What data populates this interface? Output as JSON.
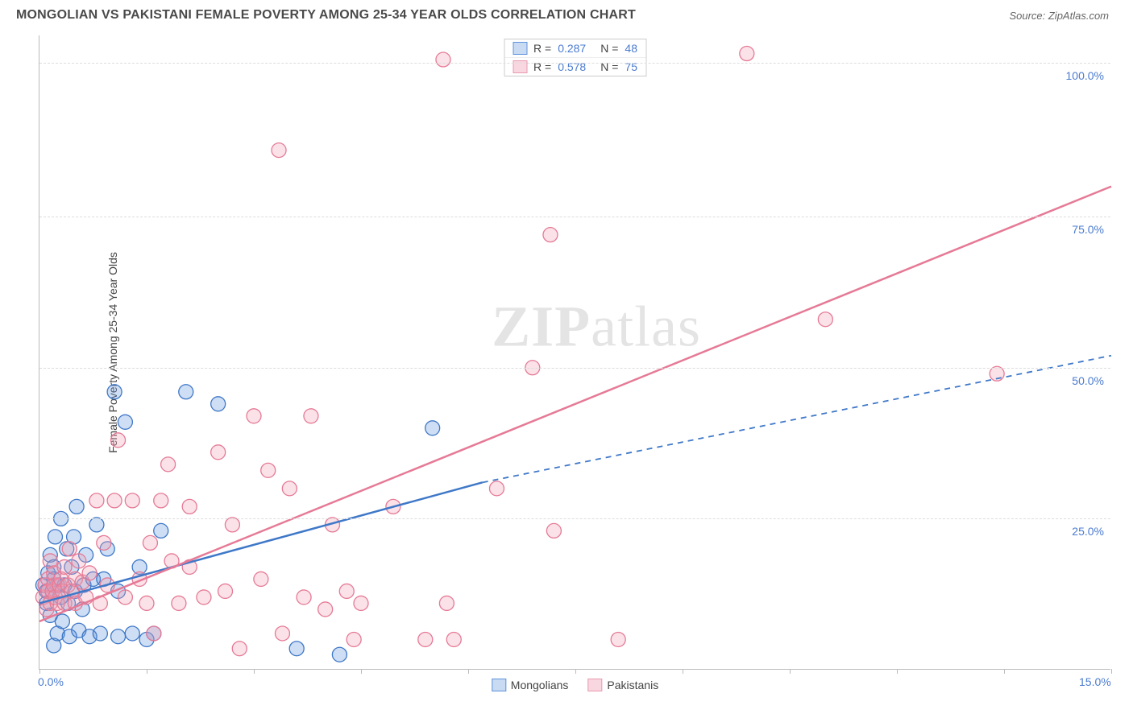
{
  "title": "MONGOLIAN VS PAKISTANI FEMALE POVERTY AMONG 25-34 YEAR OLDS CORRELATION CHART",
  "source_label": "Source: ZipAtlas.com",
  "ylabel": "Female Poverty Among 25-34 Year Olds",
  "watermark": {
    "bold": "ZIP",
    "rest": "atlas"
  },
  "chart": {
    "type": "scatter",
    "background_color": "#ffffff",
    "grid_color": "#dddddd",
    "axis_color": "#bbbbbb",
    "tick_label_color": "#4a7bd0",
    "xlim": [
      0,
      15
    ],
    "ylim": [
      0,
      105
    ],
    "x_ticks": [
      0,
      1.5,
      3,
      4.5,
      6,
      7.5,
      9,
      10.5,
      12,
      13.5,
      15
    ],
    "x_tick_labels": {
      "0": "0.0%",
      "15": "15.0%"
    },
    "y_gridlines": [
      25,
      50,
      75,
      100.5
    ],
    "y_tick_labels": {
      "25": "25.0%",
      "50": "50.0%",
      "75": "75.0%",
      "100.5": "100.0%"
    },
    "marker_radius": 9,
    "marker_fill_opacity": 0.3,
    "marker_stroke_width": 1.3,
    "series": [
      {
        "name": "Mongolians",
        "color": "#5d93db",
        "stroke": "#3f78c8",
        "R": "0.287",
        "N": "48",
        "trend": {
          "x1": 0,
          "y1": 11,
          "x2": 6.2,
          "y2": 31,
          "dash_to_x": 15,
          "dash_to_y": 52,
          "width": 2.5
        },
        "points": [
          [
            0.05,
            14
          ],
          [
            0.1,
            13
          ],
          [
            0.1,
            11
          ],
          [
            0.12,
            16
          ],
          [
            0.15,
            19
          ],
          [
            0.15,
            9
          ],
          [
            0.18,
            13
          ],
          [
            0.2,
            15
          ],
          [
            0.2,
            17
          ],
          [
            0.2,
            4
          ],
          [
            0.22,
            22
          ],
          [
            0.25,
            14
          ],
          [
            0.25,
            6
          ],
          [
            0.3,
            12
          ],
          [
            0.3,
            25
          ],
          [
            0.32,
            8
          ],
          [
            0.35,
            14
          ],
          [
            0.38,
            20
          ],
          [
            0.4,
            11
          ],
          [
            0.42,
            5.5
          ],
          [
            0.45,
            17
          ],
          [
            0.48,
            22
          ],
          [
            0.5,
            13
          ],
          [
            0.52,
            27
          ],
          [
            0.55,
            6.5
          ],
          [
            0.6,
            10
          ],
          [
            0.62,
            14
          ],
          [
            0.65,
            19
          ],
          [
            0.7,
            5.5
          ],
          [
            0.75,
            15
          ],
          [
            0.8,
            24
          ],
          [
            0.85,
            6
          ],
          [
            0.9,
            15
          ],
          [
            0.95,
            20
          ],
          [
            1.05,
            46
          ],
          [
            1.1,
            13
          ],
          [
            1.1,
            5.5
          ],
          [
            1.2,
            41
          ],
          [
            1.3,
            6
          ],
          [
            1.4,
            17
          ],
          [
            1.5,
            5
          ],
          [
            1.6,
            6
          ],
          [
            1.7,
            23
          ],
          [
            2.05,
            46
          ],
          [
            2.5,
            44
          ],
          [
            3.6,
            3.5
          ],
          [
            4.2,
            2.5
          ],
          [
            5.5,
            40
          ]
        ]
      },
      {
        "name": "Pakistanis",
        "color": "#f0a0b4",
        "stroke": "#e67a96",
        "R": "0.578",
        "N": "75",
        "trend": {
          "x1": 0,
          "y1": 8,
          "x2": 15,
          "y2": 80,
          "width": 2.5
        },
        "points": [
          [
            0.05,
            12
          ],
          [
            0.08,
            14
          ],
          [
            0.1,
            10
          ],
          [
            0.12,
            15
          ],
          [
            0.12,
            13
          ],
          [
            0.15,
            11
          ],
          [
            0.15,
            18
          ],
          [
            0.18,
            13
          ],
          [
            0.2,
            14
          ],
          [
            0.2,
            16
          ],
          [
            0.22,
            12
          ],
          [
            0.25,
            11
          ],
          [
            0.28,
            14
          ],
          [
            0.3,
            15
          ],
          [
            0.32,
            13
          ],
          [
            0.35,
            17
          ],
          [
            0.35,
            11
          ],
          [
            0.4,
            14
          ],
          [
            0.42,
            20
          ],
          [
            0.45,
            13
          ],
          [
            0.5,
            15
          ],
          [
            0.5,
            11
          ],
          [
            0.55,
            18
          ],
          [
            0.6,
            14.5
          ],
          [
            0.65,
            12
          ],
          [
            0.7,
            16
          ],
          [
            0.8,
            28
          ],
          [
            0.85,
            11
          ],
          [
            0.9,
            21
          ],
          [
            0.95,
            14
          ],
          [
            1.05,
            28
          ],
          [
            1.1,
            38
          ],
          [
            1.2,
            12
          ],
          [
            1.3,
            28
          ],
          [
            1.4,
            15
          ],
          [
            1.5,
            11
          ],
          [
            1.55,
            21
          ],
          [
            1.6,
            6
          ],
          [
            1.7,
            28
          ],
          [
            1.8,
            34
          ],
          [
            1.85,
            18
          ],
          [
            1.95,
            11
          ],
          [
            2.1,
            17
          ],
          [
            2.1,
            27
          ],
          [
            2.3,
            12
          ],
          [
            2.5,
            36
          ],
          [
            2.6,
            13
          ],
          [
            2.7,
            24
          ],
          [
            2.8,
            3.5
          ],
          [
            3.0,
            42
          ],
          [
            3.1,
            15
          ],
          [
            3.2,
            33
          ],
          [
            3.35,
            86
          ],
          [
            3.4,
            6
          ],
          [
            3.5,
            30
          ],
          [
            3.7,
            12
          ],
          [
            3.8,
            42
          ],
          [
            4.0,
            10
          ],
          [
            4.1,
            24
          ],
          [
            4.4,
            5
          ],
          [
            4.5,
            11
          ],
          [
            4.95,
            27
          ],
          [
            5.4,
            5
          ],
          [
            5.65,
            101
          ],
          [
            5.7,
            11
          ],
          [
            5.8,
            5
          ],
          [
            6.4,
            30
          ],
          [
            6.9,
            50
          ],
          [
            7.15,
            72
          ],
          [
            7.2,
            23
          ],
          [
            8.1,
            5
          ],
          [
            9.9,
            102
          ],
          [
            11.0,
            58
          ],
          [
            13.4,
            49
          ],
          [
            4.3,
            13
          ]
        ]
      }
    ],
    "legend": [
      {
        "label": "Mongolians",
        "fill": "#c9daf3",
        "stroke": "#5d93db"
      },
      {
        "label": "Pakistanis",
        "fill": "#f8d7e0",
        "stroke": "#e89ab0"
      }
    ],
    "stats_box": [
      {
        "fill": "#c9daf3",
        "stroke": "#5d93db",
        "R": "0.287",
        "N": "48"
      },
      {
        "fill": "#f8d7e0",
        "stroke": "#e89ab0",
        "R": "0.578",
        "N": "75"
      }
    ]
  }
}
